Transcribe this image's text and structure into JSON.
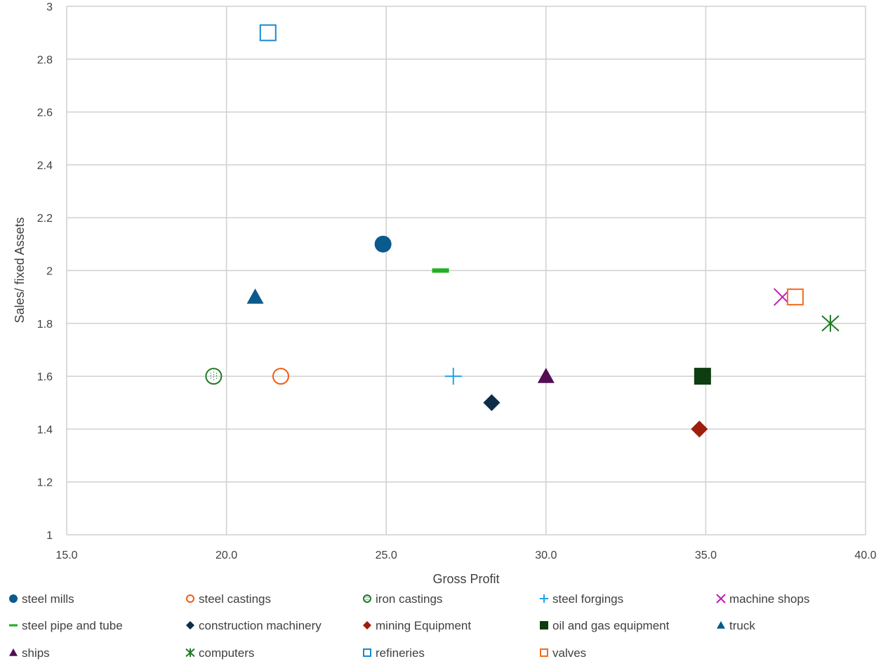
{
  "chart_data": {
    "type": "scatter",
    "title": "",
    "xlabel": "Gross Profit",
    "ylabel": "Sales/ fixed Assets",
    "xlim": [
      15,
      40
    ],
    "ylim": [
      1,
      3
    ],
    "x_ticks": [
      "15.0",
      "20.0",
      "25.0",
      "30.0",
      "35.0",
      "40.0"
    ],
    "y_ticks": [
      "1",
      "1.2",
      "1.4",
      "1.6",
      "1.8",
      "2",
      "2.2",
      "2.4",
      "2.6",
      "2.8",
      "3"
    ],
    "grid": true,
    "legend_position": "bottom",
    "series": [
      {
        "name": "steel mills",
        "x": 24.9,
        "y": 2.1,
        "marker": "circle-filled",
        "color": "#0b5a8c"
      },
      {
        "name": "steel castings",
        "x": 21.7,
        "y": 1.6,
        "marker": "circle-open",
        "color": "#f25c12"
      },
      {
        "name": "iron castings",
        "x": 19.6,
        "y": 1.6,
        "marker": "circle-dotted",
        "color": "#1e7a23"
      },
      {
        "name": "steel forgings",
        "x": 27.1,
        "y": 1.6,
        "marker": "plus",
        "color": "#1fa2ef"
      },
      {
        "name": "machine shops",
        "x": 37.4,
        "y": 1.9,
        "marker": "x",
        "color": "#c21cb4"
      },
      {
        "name": "steel pipe and tube",
        "x": 26.7,
        "y": 2.0,
        "marker": "dash",
        "color": "#21b021"
      },
      {
        "name": "construction machinery",
        "x": 28.3,
        "y": 1.5,
        "marker": "diamond",
        "color": "#0d2d48"
      },
      {
        "name": "mining Equipment",
        "x": 34.8,
        "y": 1.4,
        "marker": "diamond",
        "color": "#a01d0b"
      },
      {
        "name": "oil and gas equipment",
        "x": 34.9,
        "y": 1.6,
        "marker": "square-filled",
        "color": "#0e3d12"
      },
      {
        "name": "truck",
        "x": 20.9,
        "y": 1.9,
        "marker": "triangle",
        "color": "#0b5a8c"
      },
      {
        "name": "ships",
        "x": 30.0,
        "y": 1.6,
        "marker": "triangle",
        "color": "#520f52"
      },
      {
        "name": "computers",
        "x": 38.9,
        "y": 1.8,
        "marker": "asterisk",
        "color": "#1e7a23"
      },
      {
        "name": "refineries",
        "x": 21.3,
        "y": 2.9,
        "marker": "square-open",
        "color": "#1a8ad1"
      },
      {
        "name": "valves",
        "x": 37.8,
        "y": 1.9,
        "marker": "square-open",
        "color": "#f26b22"
      }
    ]
  }
}
